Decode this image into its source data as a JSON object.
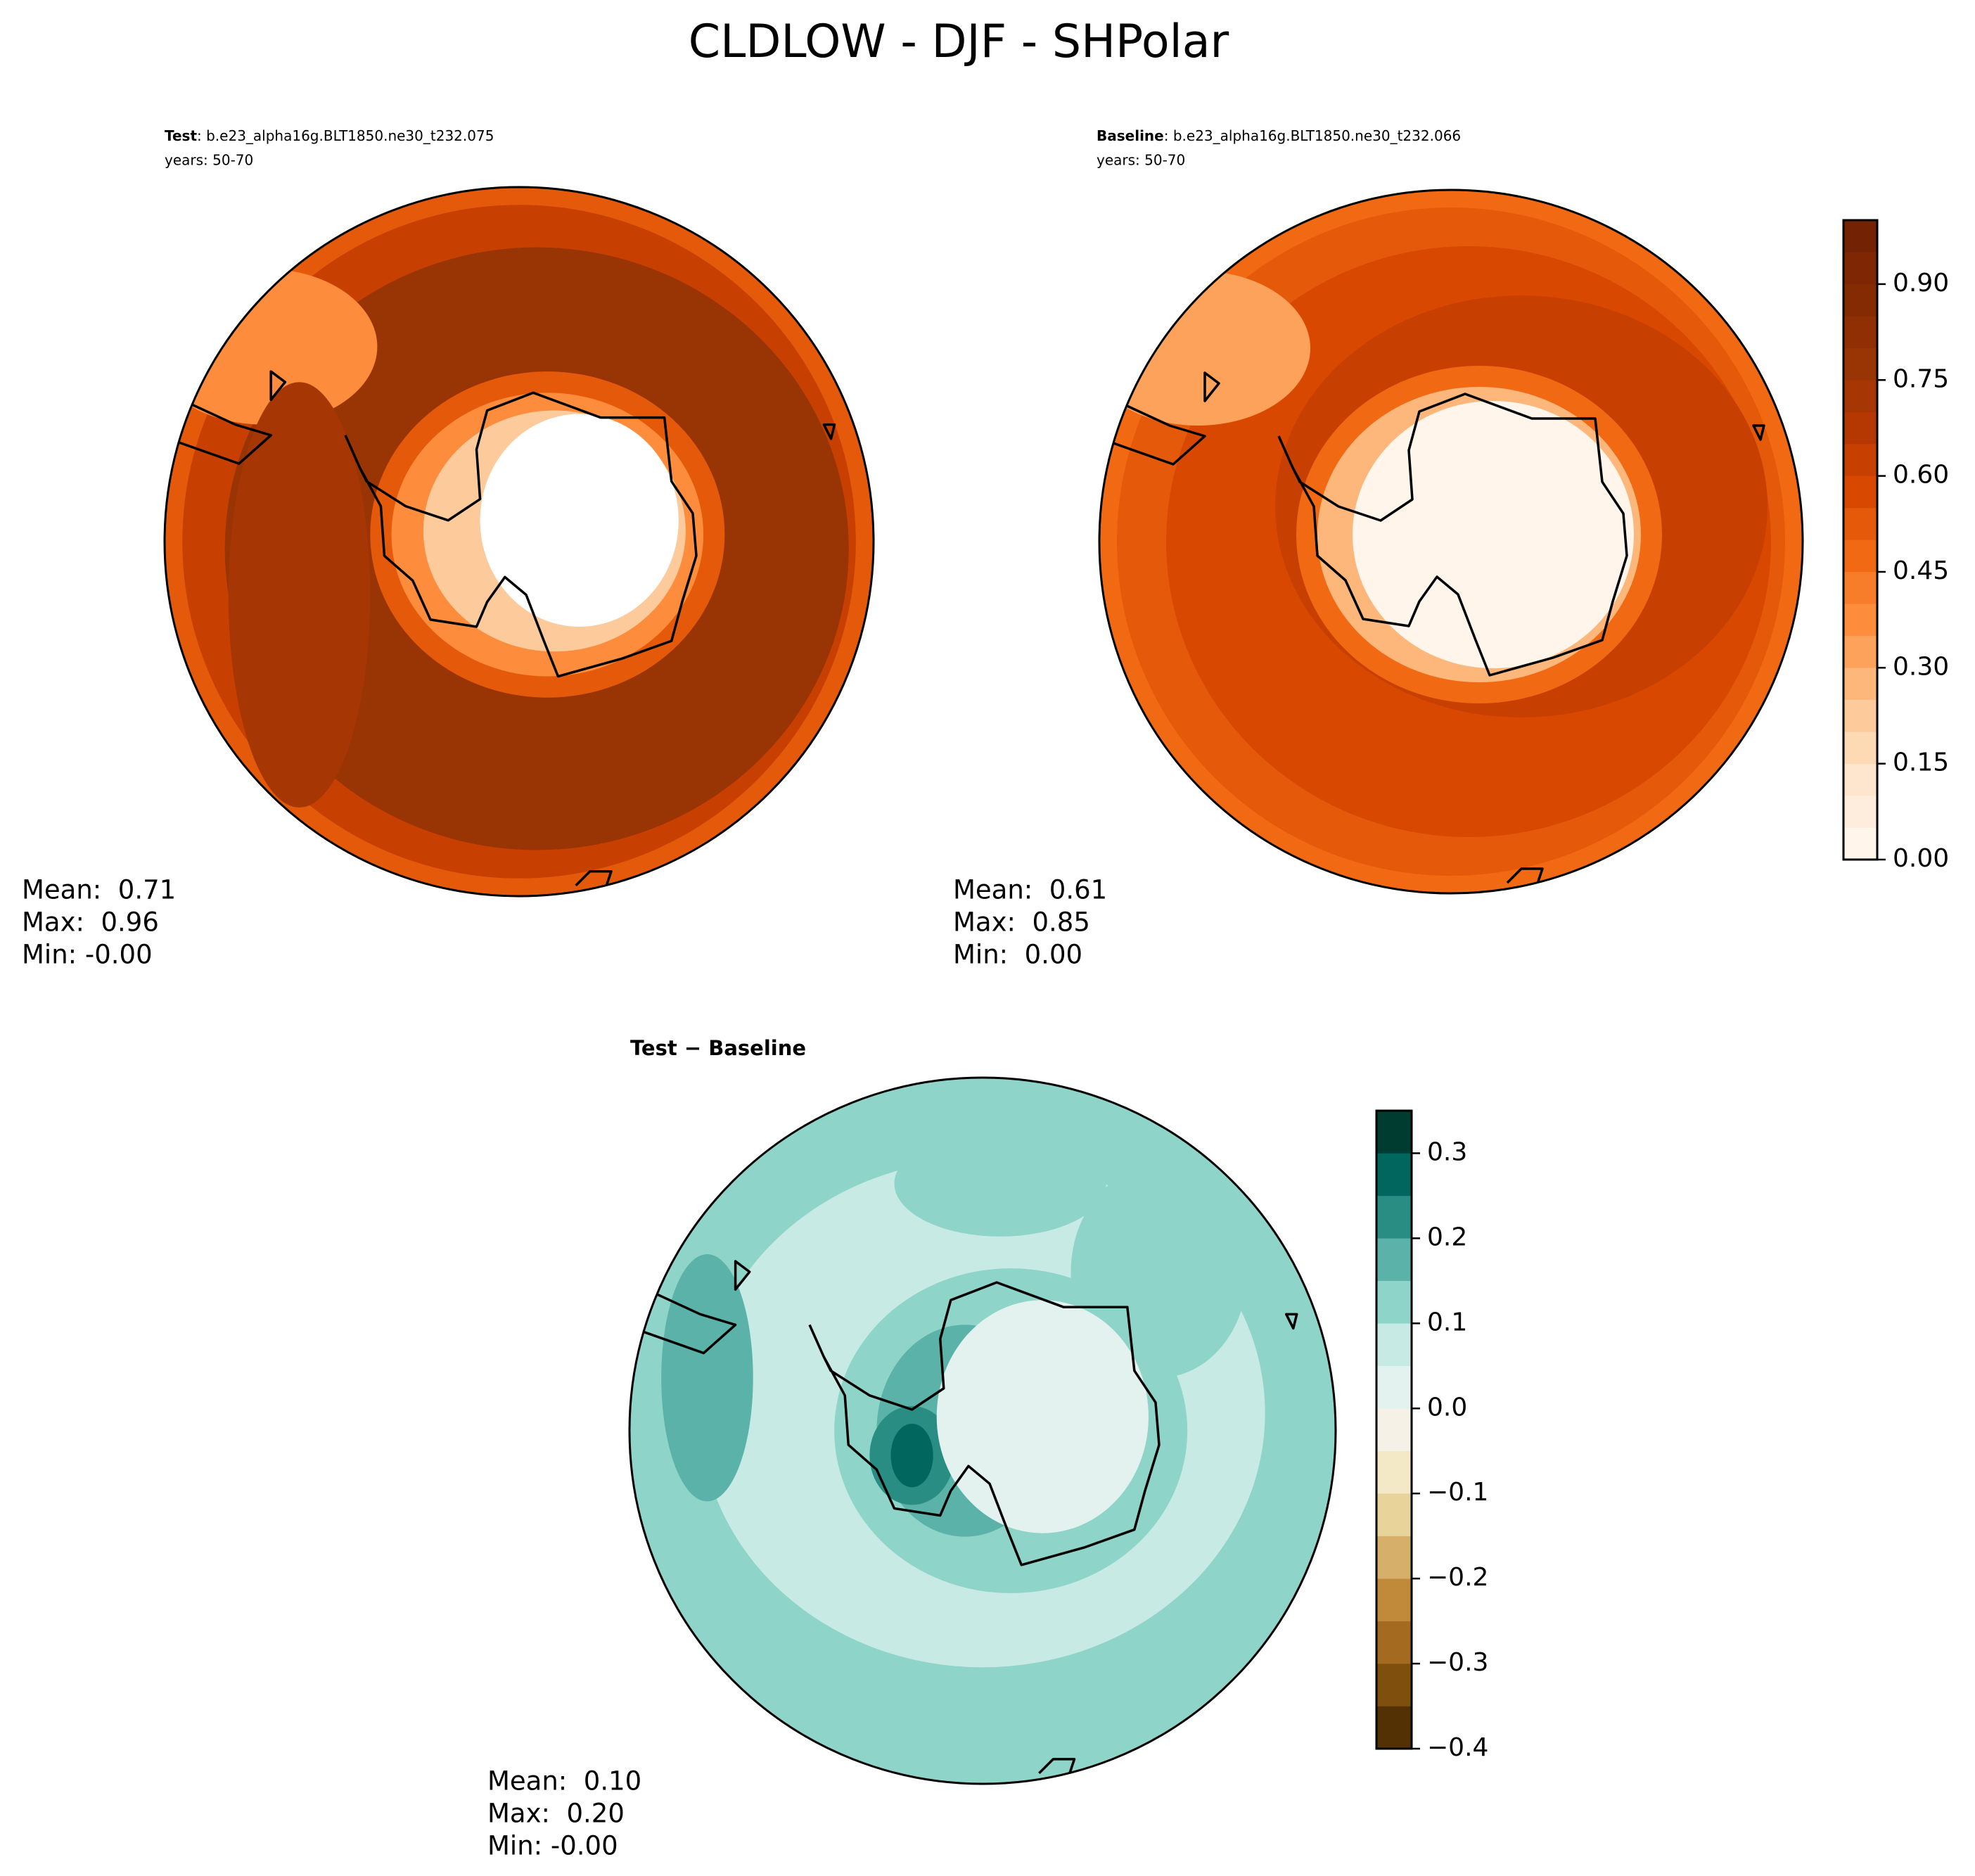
{
  "title": "CLDLOW - DJF - SHPolar",
  "chart_data": [
    {
      "type": "map",
      "title": "Test",
      "case": ": b.e23_alpha16g.BLT1850.ne30_t232.075",
      "subtitle": "years: 50-70",
      "stats": [
        "Mean:  0.71",
        "Max:  0.96",
        "Min: -0.00"
      ]
    },
    {
      "type": "map",
      "title": "Baseline",
      "case": ": b.e23_alpha16g.BLT1850.ne30_t232.066",
      "subtitle": "years: 50-70",
      "stats": [
        "Mean:  0.61",
        "Max:  0.85",
        "Min:  0.00"
      ],
      "colorbar": {
        "ylim": [
          0,
          1
        ],
        "yticks": [
          {
            "value": 0,
            "label": "0.00"
          },
          0.15,
          {
            "value": 0.3,
            "label": "0.30"
          },
          0.45,
          {
            "value": 0.6,
            "label": "0.60"
          },
          0.75,
          {
            "value": 0.9,
            "label": "0.90"
          }
        ],
        "levels": [
          0,
          0.05,
          0.1,
          0.15,
          0.2,
          0.25,
          0.3,
          0.35,
          0.4,
          0.45,
          0.5,
          0.55,
          0.6,
          0.65,
          0.7,
          0.75,
          0.8,
          0.85,
          0.9,
          0.95,
          1
        ],
        "colors": [
          "#fff5eb",
          "#feeddc",
          "#fee6ce",
          "#fdd9b4",
          "#fdcb9b",
          "#fdb77a",
          "#fda25b",
          "#fd8d3c",
          "#f87d2b",
          "#f16913",
          "#e55a0a",
          "#d94801",
          "#c84001",
          "#b53803",
          "#a63603",
          "#993404",
          "#8f2f03",
          "#852b03",
          "#7f2704",
          "#732204"
        ]
      }
    },
    {
      "type": "map",
      "title": "Test − Baseline",
      "stats": [
        "Mean:  0.10",
        "Max:  0.20",
        "Min: -0.00"
      ],
      "colorbar": {
        "ylim": [
          -0.4,
          0.35
        ],
        "yticks": [
          {
            "value": -0.4,
            "label": "−0.4"
          },
          {
            "value": -0.3,
            "label": "−0.3"
          },
          {
            "value": -0.2,
            "label": "−0.2"
          },
          {
            "value": -0.1,
            "label": "−0.1"
          },
          {
            "value": 0,
            "label": "0.0"
          },
          0.1,
          0.2,
          0.3
        ],
        "levels": [
          -0.4,
          -0.35,
          -0.3,
          -0.25,
          -0.2,
          -0.15,
          -0.1,
          -0.05,
          0,
          0.05,
          0.1,
          0.15,
          0.2,
          0.25,
          0.3,
          0.35
        ],
        "colors": [
          "#543005",
          "#7f4f0e",
          "#a46a1f",
          "#c08a3a",
          "#d6b06a",
          "#e8d39a",
          "#f4e9c6",
          "#f5f1e6",
          "#e3f2ef",
          "#c7eae5",
          "#8fd4c9",
          "#5ab2a8",
          "#2a8d83",
          "#01665e",
          "#003c30"
        ]
      }
    }
  ]
}
